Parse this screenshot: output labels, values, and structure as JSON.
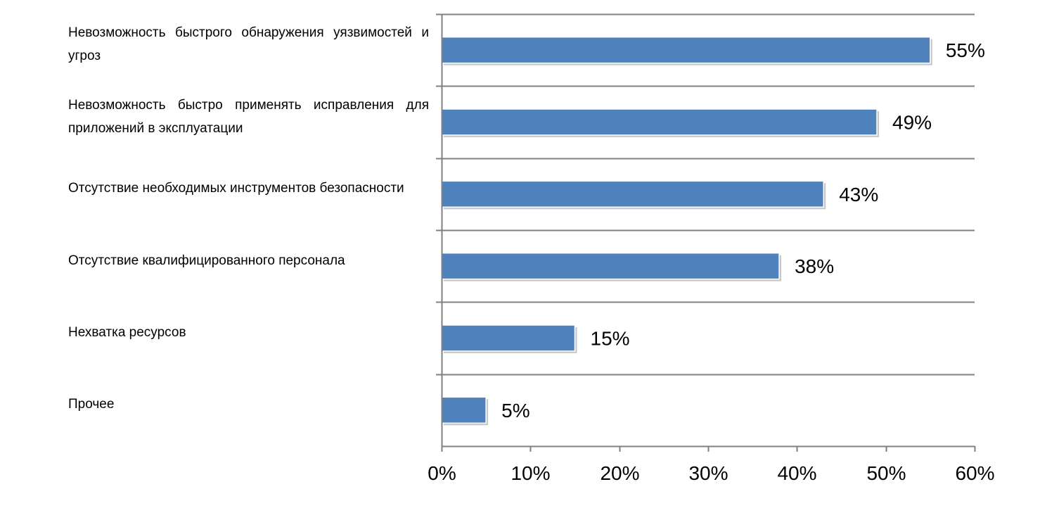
{
  "chart_data": {
    "type": "bar",
    "orientation": "horizontal",
    "categories": [
      "Невозможность быстрого обнаружения уязвимостей и угроз",
      "Невозможность быстро применять исправления для приложений в эксплуатации",
      "Отсутствие необходимых инструментов безопасности",
      "Отсутствие квалифицированного персонала",
      "Нехватка ресурсов",
      "Прочее"
    ],
    "values": [
      55,
      49,
      43,
      38,
      15,
      5
    ],
    "data_labels": [
      "55%",
      "49%",
      "43%",
      "38%",
      "15%",
      "5%"
    ],
    "xlim": [
      0,
      60
    ],
    "x_ticks": [
      0,
      10,
      20,
      30,
      40,
      50,
      60
    ],
    "x_tick_labels": [
      "0%",
      "10%",
      "20%",
      "30%",
      "40%",
      "50%",
      "60%"
    ],
    "title": "",
    "xlabel": "",
    "ylabel": "",
    "grid": "horizontal separators between categories",
    "legend": "none",
    "bar_color": "#4f81bd",
    "axis_color": "#808080"
  }
}
